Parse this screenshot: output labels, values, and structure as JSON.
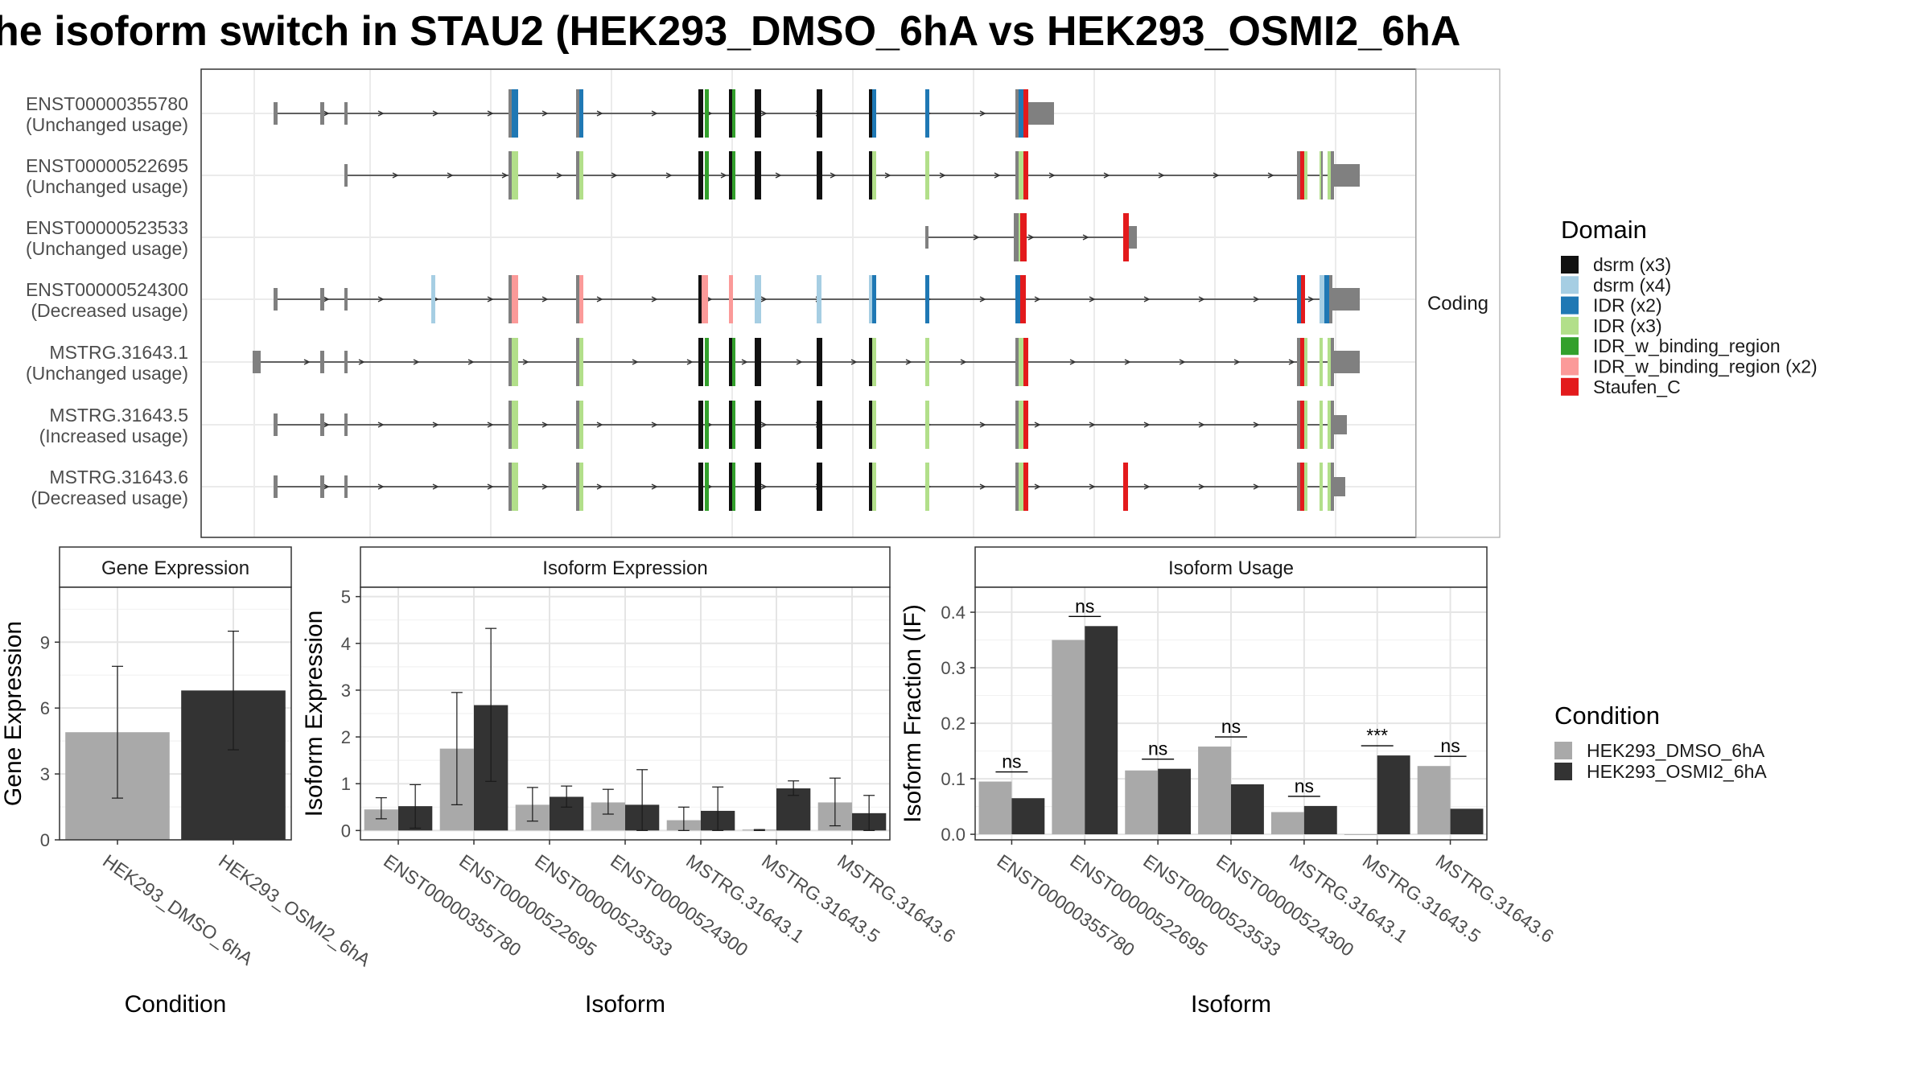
{
  "title": "he isoform switch in STAU2 (HEK293_DMSO_6hA vs HEK293_OSMI2_6hA",
  "structure": {
    "facet_label": "Coding",
    "isoforms": [
      {
        "id": "ENST00000355780",
        "usage": "(Unchanged usage)"
      },
      {
        "id": "ENST00000522695",
        "usage": "(Unchanged usage)"
      },
      {
        "id": "ENST00000523533",
        "usage": "(Unchanged usage)"
      },
      {
        "id": "ENST00000524300",
        "usage": "(Decreased usage)"
      },
      {
        "id": "MSTRG.31643.1",
        "usage": "(Unchanged usage)"
      },
      {
        "id": "MSTRG.31643.5",
        "usage": "(Increased usage)"
      },
      {
        "id": "MSTRG.31643.6",
        "usage": "(Decreased usage)"
      }
    ]
  },
  "domain_legend": {
    "title": "Domain",
    "items": [
      {
        "label": "dsrm (x3)",
        "color": "#111111"
      },
      {
        "label": "dsrm (x4)",
        "color": "#a6cee3"
      },
      {
        "label": "IDR (x2)",
        "color": "#1f78b4"
      },
      {
        "label": "IDR (x3)",
        "color": "#b2df8a"
      },
      {
        "label": "IDR_w_binding_region",
        "color": "#33a02c"
      },
      {
        "label": "IDR_w_binding_region (x2)",
        "color": "#fb9a99"
      },
      {
        "label": "Staufen_C",
        "color": "#e31a1c"
      }
    ]
  },
  "condition_legend": {
    "title": "Condition",
    "items": [
      {
        "label": "HEK293_DMSO_6hA",
        "color": "#a9a9a9"
      },
      {
        "label": "HEK293_OSMI2_6hA",
        "color": "#333333"
      }
    ]
  },
  "chart_data": [
    {
      "type": "bar",
      "title": "Gene Expression",
      "xlabel": "Condition",
      "ylabel": "Gene Expression",
      "categories": [
        "HEK293_DMSO_6hA",
        "HEK293_OSMI2_6hA"
      ],
      "values": [
        4.9,
        6.8
      ],
      "error_low": [
        1.9,
        4.1
      ],
      "error_high": [
        7.9,
        9.5
      ],
      "ylim": [
        0,
        11.5
      ],
      "yticks": [
        0,
        3,
        6,
        9
      ]
    },
    {
      "type": "bar",
      "title": "Isoform Expression",
      "xlabel": "Isoform",
      "ylabel": "Isoform Expression",
      "categories": [
        "ENST00000355780",
        "ENST00000522695",
        "ENST00000523533",
        "ENST00000524300",
        "MSTRG.31643.1",
        "MSTRG.31643.5",
        "MSTRG.31643.6"
      ],
      "series": [
        {
          "name": "HEK293_DMSO_6hA",
          "values": [
            0.45,
            1.75,
            0.55,
            0.6,
            0.22,
            0.02,
            0.6
          ],
          "error_low": [
            0.25,
            0.55,
            0.2,
            0.35,
            0.0,
            0.0,
            0.1
          ],
          "error_high": [
            0.7,
            2.95,
            0.92,
            0.88,
            0.5,
            0.02,
            1.12
          ]
        },
        {
          "name": "HEK293_OSMI2_6hA",
          "values": [
            0.52,
            2.68,
            0.72,
            0.55,
            0.42,
            0.9,
            0.37
          ],
          "error_low": [
            0.05,
            1.05,
            0.5,
            0.0,
            0.0,
            0.75,
            0.0
          ],
          "error_high": [
            0.98,
            4.32,
            0.95,
            1.3,
            0.93,
            1.06,
            0.75
          ]
        }
      ],
      "ylim": [
        -0.2,
        5.2
      ],
      "yticks": [
        0,
        1,
        2,
        3,
        4,
        5
      ]
    },
    {
      "type": "bar",
      "title": "Isoform Usage",
      "xlabel": "Isoform",
      "ylabel": "Isoform Fraction (IF)",
      "categories": [
        "ENST00000355780",
        "ENST00000522695",
        "ENST00000523533",
        "ENST00000524300",
        "MSTRG.31643.1",
        "MSTRG.31643.5",
        "MSTRG.31643.6"
      ],
      "series": [
        {
          "name": "HEK293_DMSO_6hA",
          "values": [
            0.095,
            0.35,
            0.115,
            0.158,
            0.04,
            0.0,
            0.123
          ]
        },
        {
          "name": "HEK293_OSMI2_6hA",
          "values": [
            0.065,
            0.375,
            0.118,
            0.09,
            0.051,
            0.142,
            0.046
          ]
        }
      ],
      "significance": [
        "ns",
        "ns",
        "ns",
        "ns",
        "ns",
        "***",
        "ns"
      ],
      "ylim": [
        -0.01,
        0.445
      ],
      "yticks": [
        0.0,
        0.1,
        0.2,
        0.3,
        0.4
      ]
    }
  ]
}
